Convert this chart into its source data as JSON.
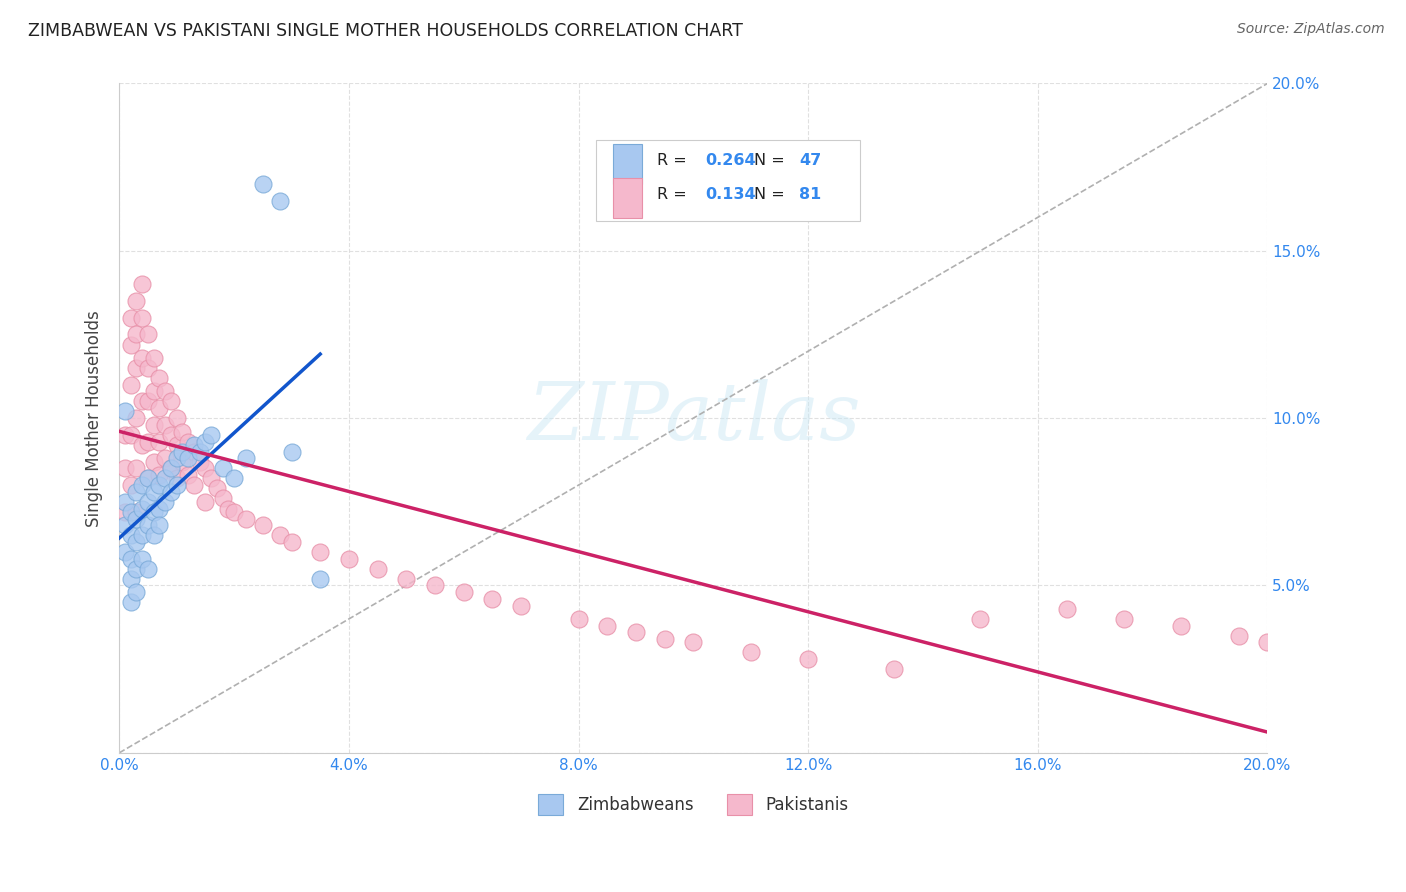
{
  "title": "ZIMBABWEAN VS PAKISTANI SINGLE MOTHER HOUSEHOLDS CORRELATION CHART",
  "source": "Source: ZipAtlas.com",
  "ylabel": "Single Mother Households",
  "xlim": [
    0.0,
    0.2
  ],
  "ylim": [
    0.0,
    0.2
  ],
  "xticks": [
    0.0,
    0.04,
    0.08,
    0.12,
    0.16,
    0.2
  ],
  "yticks": [
    0.0,
    0.05,
    0.1,
    0.15,
    0.2
  ],
  "zimbabwean_color": "#a8c8f0",
  "pakistani_color": "#f5b8cc",
  "zimbabwean_edge": "#7aaad8",
  "pakistani_edge": "#e890a8",
  "zimbabwean_line_color": "#1155cc",
  "pakistani_line_color": "#cc2266",
  "R_zim": 0.264,
  "N_zim": 47,
  "R_pak": 0.134,
  "N_pak": 81,
  "watermark": "ZIPatlas",
  "background_color": "#ffffff",
  "grid_color": "#dddddd",
  "zim_x": [
    0.001,
    0.001,
    0.001,
    0.001,
    0.002,
    0.002,
    0.002,
    0.002,
    0.002,
    0.003,
    0.003,
    0.003,
    0.003,
    0.003,
    0.004,
    0.004,
    0.004,
    0.004,
    0.005,
    0.005,
    0.005,
    0.005,
    0.006,
    0.006,
    0.006,
    0.007,
    0.007,
    0.007,
    0.008,
    0.008,
    0.009,
    0.009,
    0.01,
    0.01,
    0.011,
    0.012,
    0.013,
    0.014,
    0.015,
    0.016,
    0.018,
    0.02,
    0.022,
    0.025,
    0.028,
    0.03,
    0.035
  ],
  "zim_y": [
    0.075,
    0.068,
    0.06,
    0.102,
    0.072,
    0.065,
    0.058,
    0.052,
    0.045,
    0.078,
    0.07,
    0.063,
    0.055,
    0.048,
    0.08,
    0.073,
    0.065,
    0.058,
    0.082,
    0.075,
    0.068,
    0.055,
    0.078,
    0.072,
    0.065,
    0.08,
    0.073,
    0.068,
    0.082,
    0.075,
    0.085,
    0.078,
    0.088,
    0.08,
    0.09,
    0.088,
    0.092,
    0.09,
    0.093,
    0.095,
    0.085,
    0.082,
    0.088,
    0.17,
    0.165,
    0.09,
    0.052
  ],
  "pak_x": [
    0.001,
    0.001,
    0.001,
    0.002,
    0.002,
    0.002,
    0.002,
    0.002,
    0.003,
    0.003,
    0.003,
    0.003,
    0.003,
    0.003,
    0.004,
    0.004,
    0.004,
    0.004,
    0.004,
    0.005,
    0.005,
    0.005,
    0.005,
    0.005,
    0.006,
    0.006,
    0.006,
    0.006,
    0.007,
    0.007,
    0.007,
    0.007,
    0.008,
    0.008,
    0.008,
    0.009,
    0.009,
    0.009,
    0.01,
    0.01,
    0.01,
    0.011,
    0.011,
    0.012,
    0.012,
    0.013,
    0.013,
    0.014,
    0.015,
    0.015,
    0.016,
    0.017,
    0.018,
    0.019,
    0.02,
    0.022,
    0.025,
    0.028,
    0.03,
    0.035,
    0.04,
    0.045,
    0.05,
    0.055,
    0.06,
    0.065,
    0.07,
    0.08,
    0.085,
    0.09,
    0.095,
    0.1,
    0.11,
    0.12,
    0.135,
    0.15,
    0.165,
    0.175,
    0.185,
    0.195,
    0.2
  ],
  "pak_y": [
    0.095,
    0.085,
    0.072,
    0.13,
    0.122,
    0.11,
    0.095,
    0.08,
    0.135,
    0.125,
    0.115,
    0.1,
    0.085,
    0.072,
    0.14,
    0.13,
    0.118,
    0.105,
    0.092,
    0.125,
    0.115,
    0.105,
    0.093,
    0.082,
    0.118,
    0.108,
    0.098,
    0.087,
    0.112,
    0.103,
    0.093,
    0.083,
    0.108,
    0.098,
    0.088,
    0.105,
    0.095,
    0.085,
    0.1,
    0.092,
    0.082,
    0.096,
    0.087,
    0.093,
    0.083,
    0.09,
    0.08,
    0.087,
    0.085,
    0.075,
    0.082,
    0.079,
    0.076,
    0.073,
    0.072,
    0.07,
    0.068,
    0.065,
    0.063,
    0.06,
    0.058,
    0.055,
    0.052,
    0.05,
    0.048,
    0.046,
    0.044,
    0.04,
    0.038,
    0.036,
    0.034,
    0.033,
    0.03,
    0.028,
    0.025,
    0.04,
    0.043,
    0.04,
    0.038,
    0.035,
    0.033
  ]
}
